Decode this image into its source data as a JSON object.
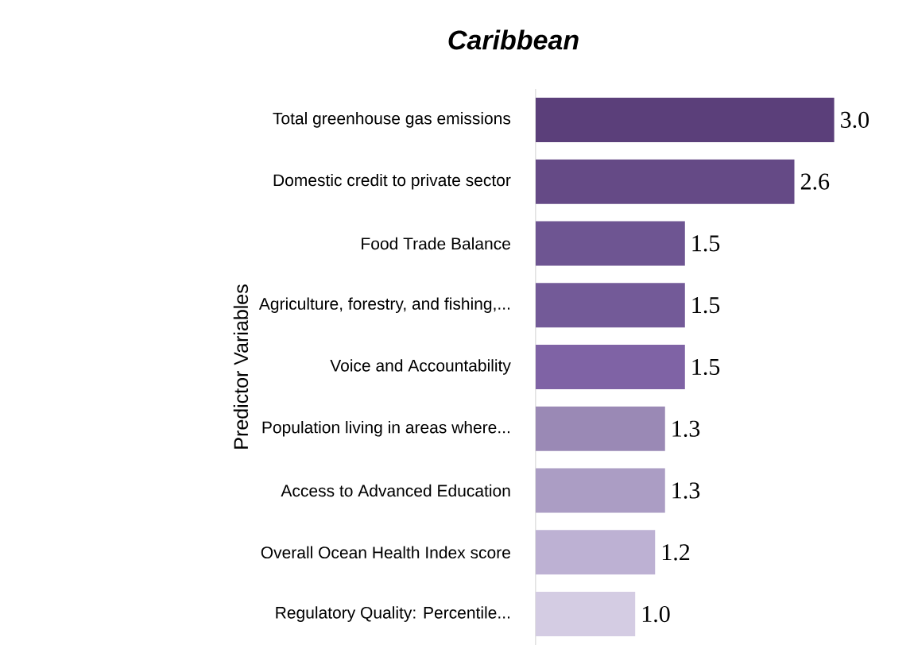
{
  "chart_data": {
    "type": "bar",
    "orientation": "horizontal",
    "title": "Caribbean",
    "ylabel": "Predictor Variables",
    "categories": [
      "Total greenhouse gas emissions",
      "Domestic credit to private sector",
      "Food Trade Balance",
      "Agriculture, forestry, and fishing,...",
      "Voice and Accountability",
      "Population living in areas where...",
      "Access to Advanced Education",
      "Overall Ocean Health Index score",
      "Regulatory Quality: Percentile..."
    ],
    "values": [
      3.0,
      2.6,
      1.5,
      1.5,
      1.5,
      1.3,
      1.3,
      1.2,
      1.0
    ],
    "value_labels": [
      "3.0",
      "2.6",
      "1.5",
      "1.5",
      "1.5",
      "1.3",
      "1.3",
      "1.2",
      "1.0"
    ],
    "colors": [
      "#5b3f7a",
      "#654a86",
      "#6e5592",
      "#735a98",
      "#7f63a5",
      "#9a89b5",
      "#ab9dc4",
      "#bdb1d3",
      "#d4cce3"
    ]
  }
}
